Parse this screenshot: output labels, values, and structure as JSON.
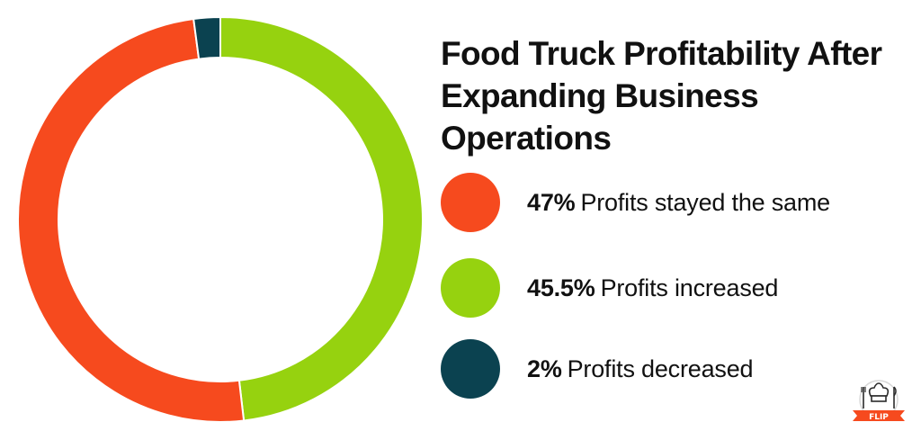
{
  "chart_data": {
    "type": "pie",
    "variant": "donut",
    "title": "Food Truck Profitability After Expanding Business Operations",
    "slices": [
      {
        "label": "Profits increased",
        "value": 45.5,
        "display": "45.5%",
        "color": "#96d20f"
      },
      {
        "label": "Profits stayed the same",
        "value": 47,
        "display": "47%",
        "color": "#f64a1e"
      },
      {
        "label": "Profits decreased",
        "value": 2,
        "display": "2%",
        "color": "#0b4250"
      }
    ],
    "legend": [
      {
        "pct": "47%",
        "label": "Profits stayed the same",
        "color": "#f64a1e"
      },
      {
        "pct": "45.5%",
        "label": "Profits increased",
        "color": "#96d20f"
      },
      {
        "pct": "2%",
        "label": "Profits decreased",
        "color": "#0b4250"
      }
    ],
    "legend_placement": "right"
  },
  "logo": {
    "text": "FLIP",
    "icon": "chef-hat-utensils-icon"
  }
}
